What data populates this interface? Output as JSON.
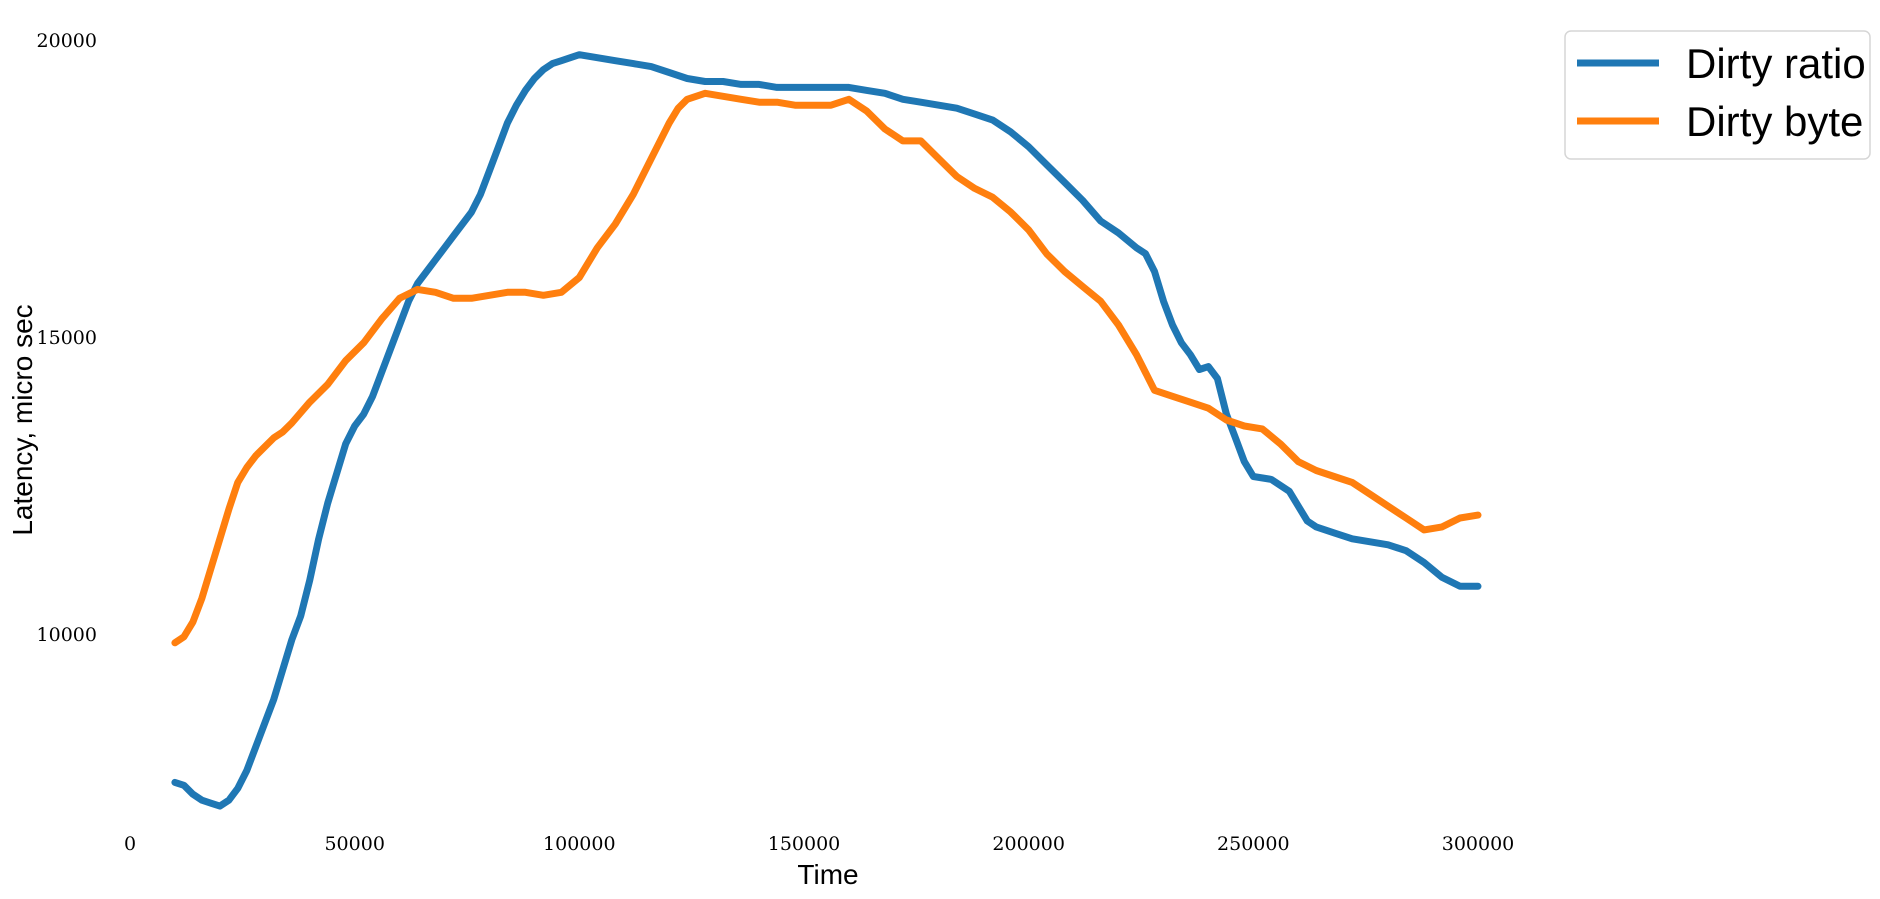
{
  "chart_data": {
    "type": "line",
    "title": "",
    "xlabel": "Time",
    "ylabel": "Latency, micro sec",
    "xlim": [
      0,
      300000
    ],
    "ylim": [
      6900,
      20200
    ],
    "xticks": [
      0,
      50000,
      100000,
      150000,
      200000,
      250000,
      300000
    ],
    "xtick_labels": [
      "0",
      "50000",
      "100000",
      "150000",
      "200000",
      "250000",
      "300000"
    ],
    "yticks": [
      10000,
      15000,
      20000
    ],
    "ytick_labels": [
      "10000",
      "15000",
      "20000"
    ],
    "grid": false,
    "legend": "top-right",
    "series": [
      {
        "name": "Dirty ratio",
        "color": "#1f77b4",
        "x": [
          10000,
          12000,
          14000,
          16000,
          18000,
          20000,
          22000,
          24000,
          26000,
          28000,
          30000,
          32000,
          34000,
          36000,
          38000,
          40000,
          42000,
          44000,
          46000,
          48000,
          50000,
          52000,
          54000,
          56000,
          58000,
          60000,
          62000,
          64000,
          66000,
          68000,
          70000,
          72000,
          74000,
          76000,
          78000,
          80000,
          82000,
          84000,
          86000,
          88000,
          90000,
          92000,
          94000,
          96000,
          98000,
          100000,
          104000,
          108000,
          112000,
          116000,
          120000,
          124000,
          128000,
          132000,
          136000,
          140000,
          144000,
          148000,
          152000,
          156000,
          160000,
          164000,
          168000,
          172000,
          176000,
          180000,
          184000,
          188000,
          192000,
          196000,
          200000,
          204000,
          208000,
          212000,
          216000,
          220000,
          224000,
          226000,
          228000,
          230000,
          232000,
          234000,
          236000,
          238000,
          240000,
          242000,
          244000,
          246000,
          248000,
          250000,
          254000,
          258000,
          262000,
          264000,
          268000,
          272000,
          276000,
          280000,
          284000,
          288000,
          292000,
          296000,
          300000
        ],
        "y": [
          7500,
          7450,
          7300,
          7200,
          7150,
          7100,
          7200,
          7400,
          7700,
          8100,
          8500,
          8900,
          9400,
          9900,
          10300,
          10900,
          11600,
          12200,
          12700,
          13200,
          13500,
          13700,
          14000,
          14400,
          14800,
          15200,
          15600,
          15900,
          16100,
          16300,
          16500,
          16700,
          16900,
          17100,
          17400,
          17800,
          18200,
          18600,
          18900,
          19150,
          19350,
          19500,
          19600,
          19650,
          19700,
          19750,
          19700,
          19650,
          19600,
          19550,
          19450,
          19350,
          19300,
          19300,
          19250,
          19250,
          19200,
          19200,
          19200,
          19200,
          19200,
          19150,
          19100,
          19000,
          18950,
          18900,
          18850,
          18750,
          18650,
          18450,
          18200,
          17900,
          17600,
          17300,
          16950,
          16750,
          16500,
          16400,
          16100,
          15600,
          15200,
          14900,
          14700,
          14450,
          14500,
          14300,
          13700,
          13300,
          12900,
          12650,
          12600,
          12400,
          11900,
          11800,
          11700,
          11600,
          11550,
          11500,
          11400,
          11200,
          10950,
          10800,
          10800
        ]
      },
      {
        "name": "Dirty byte",
        "color": "#ff7f0e",
        "x": [
          10000,
          12000,
          14000,
          16000,
          18000,
          20000,
          22000,
          24000,
          26000,
          28000,
          30000,
          32000,
          34000,
          36000,
          40000,
          44000,
          48000,
          52000,
          56000,
          60000,
          64000,
          68000,
          72000,
          76000,
          80000,
          84000,
          88000,
          92000,
          96000,
          100000,
          104000,
          108000,
          112000,
          116000,
          120000,
          122000,
          124000,
          128000,
          132000,
          136000,
          140000,
          144000,
          148000,
          152000,
          156000,
          160000,
          164000,
          168000,
          172000,
          176000,
          180000,
          184000,
          188000,
          192000,
          196000,
          200000,
          204000,
          208000,
          212000,
          216000,
          220000,
          224000,
          226000,
          228000,
          232000,
          236000,
          240000,
          244000,
          248000,
          252000,
          256000,
          260000,
          264000,
          268000,
          272000,
          276000,
          280000,
          284000,
          288000,
          292000,
          296000,
          300000
        ],
        "y": [
          9850,
          9950,
          10200,
          10600,
          11100,
          11600,
          12100,
          12550,
          12800,
          13000,
          13150,
          13300,
          13400,
          13550,
          13900,
          14200,
          14600,
          14900,
          15300,
          15650,
          15800,
          15750,
          15650,
          15650,
          15700,
          15750,
          15750,
          15700,
          15750,
          16000,
          16500,
          16900,
          17400,
          18000,
          18600,
          18850,
          19000,
          19100,
          19050,
          19000,
          18950,
          18950,
          18900,
          18900,
          18900,
          19000,
          18800,
          18500,
          18300,
          18300,
          18000,
          17700,
          17500,
          17350,
          17100,
          16800,
          16400,
          16100,
          15850,
          15600,
          15200,
          14700,
          14400,
          14100,
          14000,
          13900,
          13800,
          13600,
          13500,
          13450,
          13200,
          12900,
          12750,
          12650,
          12550,
          12350,
          12150,
          11950,
          11750,
          11800,
          11950,
          12000
        ]
      }
    ]
  }
}
